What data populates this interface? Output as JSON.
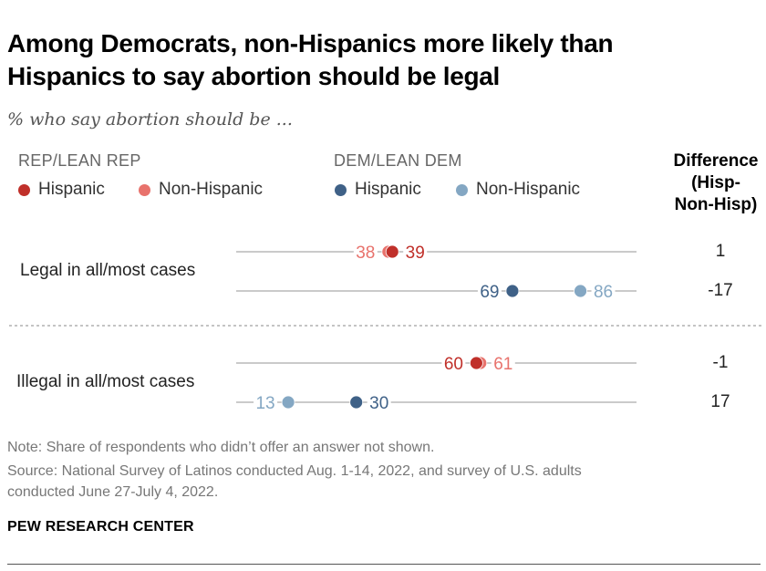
{
  "title": "Among Democrats, non-Hispanics more likely than Hispanics to say abortion should be legal",
  "subtitle": "% who say abortion should be ...",
  "legend": {
    "rep_group": "REP/LEAN REP",
    "dem_group": "DEM/LEAN DEM",
    "rep_hispanic": "Hispanic",
    "rep_non_hispanic": "Non-Hispanic",
    "dem_hispanic": "Hispanic",
    "dem_non_hispanic": "Non-Hispanic"
  },
  "difference_header": [
    "Difference",
    "(Hisp-",
    "Non-Hisp)"
  ],
  "colors": {
    "rep_hispanic": "#c0302a",
    "rep_non_hispanic": "#e8726c",
    "dem_hispanic": "#3f6187",
    "dem_non_hispanic": "#84a7c3"
  },
  "chart_data": {
    "type": "dot",
    "xlim": [
      0,
      100
    ],
    "categories": [
      "Legal in all/most cases",
      "Illegal in all/most cases"
    ],
    "rows": [
      {
        "category": "Legal in all/most cases",
        "party": "REP/LEAN REP",
        "hispanic": 39,
        "non_hispanic": 38,
        "difference": "1"
      },
      {
        "category": "Legal in all/most cases",
        "party": "DEM/LEAN DEM",
        "hispanic": 69,
        "non_hispanic": 86,
        "difference": "-17"
      },
      {
        "category": "Illegal in all/most cases",
        "party": "REP/LEAN REP",
        "hispanic": 60,
        "non_hispanic": 61,
        "difference": "-1"
      },
      {
        "category": "Illegal in all/most cases",
        "party": "DEM/LEAN DEM",
        "hispanic": 30,
        "non_hispanic": 13,
        "difference": "17"
      }
    ]
  },
  "note": "Note: Share of respondents who didn’t offer an answer not shown.",
  "source": [
    "Source: National Survey of Latinos conducted Aug. 1-14, 2022, and survey of U.S. adults",
    "conducted June 27-July 4, 2022."
  ],
  "brand": "PEW RESEARCH CENTER"
}
